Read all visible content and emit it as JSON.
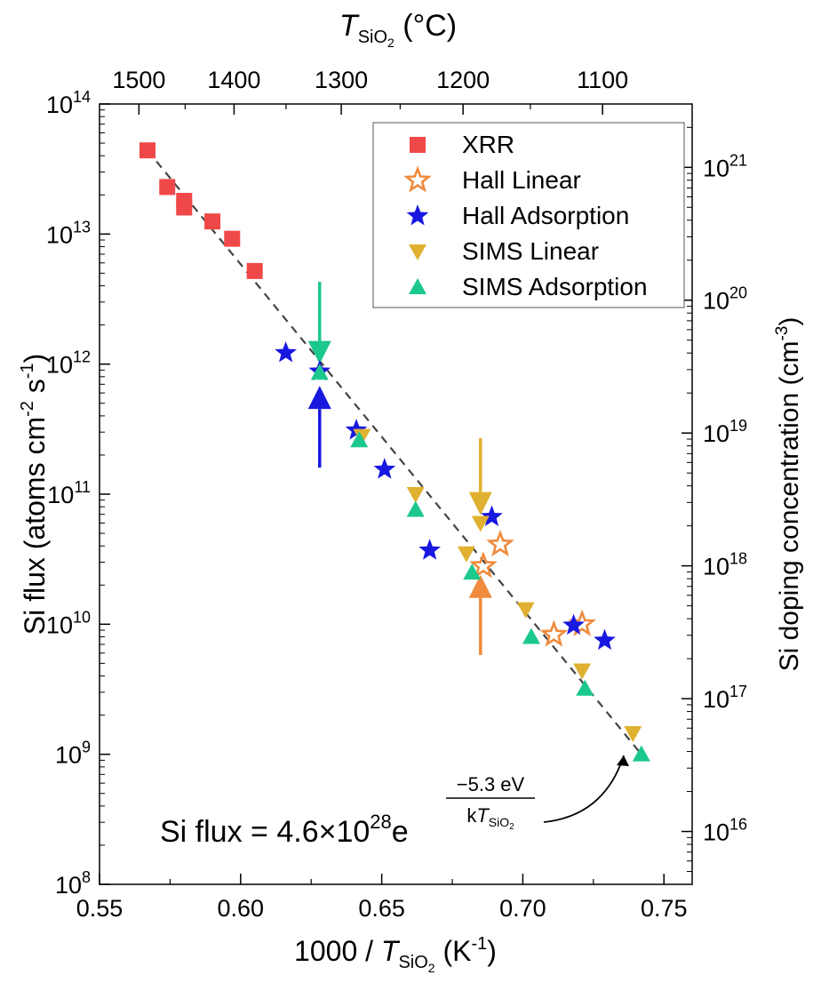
{
  "chart_data": {
    "type": "scatter",
    "x_axis": {
      "label_prefix": "1000 / ",
      "label_var": "T",
      "label_sub": "SiO",
      "label_sub2": "2",
      "label_unit_open": " (K",
      "label_unit_sup": "-1",
      "label_unit_close": ")",
      "min": 0.55,
      "max": 0.76,
      "ticks": [
        0.55,
        0.6,
        0.65,
        0.7,
        0.75
      ],
      "tick_labels": [
        "0.55",
        "0.60",
        "0.65",
        "0.70",
        "0.75"
      ]
    },
    "top_axis": {
      "label_var": "T",
      "label_sub": "SiO",
      "label_sub2": "2",
      "label_unit": " (°C)",
      "ticks_celsius": [
        1500,
        1400,
        1300,
        1200,
        1100
      ],
      "minor_ticks_celsius": [
        1450,
        1350,
        1250,
        1150
      ],
      "tick_labels": [
        "1500",
        "1400",
        "1300",
        "1200",
        "1100"
      ]
    },
    "y_axis": {
      "label": "Si flux (atoms cm",
      "label_sup1": "-2",
      "label_mid": " s",
      "label_sup2": "-1",
      "label_close": ")",
      "scale": "log",
      "min": 100000000.0,
      "max": 100000000000000.0,
      "ticks": [
        100000000.0,
        1000000000.0,
        10000000000.0,
        100000000000.0,
        1000000000000.0,
        10000000000000.0,
        100000000000000.0
      ],
      "tick_base": "10",
      "tick_exponents": [
        "8",
        "9",
        "10",
        "11",
        "12",
        "13",
        "14"
      ]
    },
    "right_axis": {
      "label": "Si doping concentration (cm",
      "label_sup": "-3",
      "label_close": ")",
      "scale": "log",
      "min": 4000000000000000.0,
      "max": 3e+21,
      "ticks": [
        1e+16,
        1e+17,
        1e+18,
        1e+19,
        1e+20,
        1e+21
      ],
      "tick_base": "10",
      "tick_exponents": [
        "16",
        "17",
        "18",
        "19",
        "20",
        "21"
      ]
    },
    "series": [
      {
        "name": "XRR",
        "marker": "square",
        "color": "#f04848",
        "filled": true,
        "points": [
          [
            0.567,
            44000000000000.0
          ],
          [
            0.574,
            23000000000000.0
          ],
          [
            0.58,
            18000000000000.0
          ],
          [
            0.58,
            16000000000000.0
          ],
          [
            0.59,
            12500000000000.0
          ],
          [
            0.597,
            9200000000000.0
          ],
          [
            0.605,
            5200000000000.0
          ]
        ]
      },
      {
        "name": "Hall Linear",
        "marker": "star-open",
        "color": "#f08a3c",
        "filled": false,
        "points": [
          [
            0.686,
            28000000000.0
          ],
          [
            0.692,
            41000000000.0
          ],
          [
            0.711,
            8300000000.0
          ],
          [
            0.721,
            10000000000.0
          ]
        ]
      },
      {
        "name": "Hall Adsorption",
        "marker": "star",
        "color": "#1818e0",
        "filled": true,
        "points": [
          [
            0.616,
            1220000000000.0
          ],
          [
            0.628,
            880000000000.0
          ],
          [
            0.641,
            310000000000.0
          ],
          [
            0.651,
            155000000000.0
          ],
          [
            0.667,
            37000000000.0
          ],
          [
            0.689,
            67000000000.0
          ],
          [
            0.718,
            9800000000.0
          ],
          [
            0.729,
            7500000000.0
          ]
        ]
      },
      {
        "name": "SIMS Linear",
        "marker": "triangle-down",
        "color": "#e0b030",
        "filled": true,
        "points": [
          [
            0.643,
            280000000000.0
          ],
          [
            0.662,
            100000000000.0
          ],
          [
            0.68,
            35000000000.0
          ],
          [
            0.685,
            60000000000.0
          ],
          [
            0.701,
            13000000000.0
          ],
          [
            0.721,
            4400000000.0
          ],
          [
            0.739,
            1450000000.0
          ]
        ]
      },
      {
        "name": "SIMS Adsorption",
        "marker": "triangle-up",
        "color": "#1cc88c",
        "filled": true,
        "points": [
          [
            0.628,
            860000000000.0
          ],
          [
            0.642,
            260000000000.0
          ],
          [
            0.662,
            76000000000.0
          ],
          [
            0.682,
            25000000000.0
          ],
          [
            0.703,
            8000000000.0
          ],
          [
            0.722,
            3200000000.0
          ],
          [
            0.742,
            1000000000.0
          ]
        ]
      }
    ],
    "fit_line": {
      "style": "dashed",
      "color": "#444444",
      "points": [
        [
          0.567,
          44000000000000.0
        ],
        [
          0.742,
          1000000000.0
        ]
      ]
    },
    "arrows": [
      {
        "color": "#1cc88c",
        "x": 0.628,
        "direction": "down",
        "from_y": 4300000000000.0,
        "to_y": 1000000000000.0
      },
      {
        "color": "#1818e0",
        "x": 0.628,
        "direction": "up",
        "from_y": 160000000000.0,
        "to_y": 680000000000.0
      },
      {
        "color": "#e0b030",
        "x": 0.685,
        "direction": "down",
        "from_y": 270000000000.0,
        "to_y": 69000000000.0
      },
      {
        "color": "#f08a3c",
        "x": 0.685,
        "direction": "up",
        "from_y": 5800000000.0,
        "to_y": 24000000000.0
      }
    ],
    "legend": {
      "placement": "top-right",
      "entries": [
        "XRR",
        "Hall Linear",
        "Hall Adsorption",
        "SIMS Linear",
        "SIMS Adsorption"
      ]
    },
    "equation": {
      "lhs": "Si flux = 4.6×10",
      "lhs_sup": "28",
      "base": "e",
      "numerator": "−5.3 eV",
      "den_k": "k",
      "den_var": "T",
      "den_sub": "SiO",
      "den_sub2": "2"
    }
  }
}
